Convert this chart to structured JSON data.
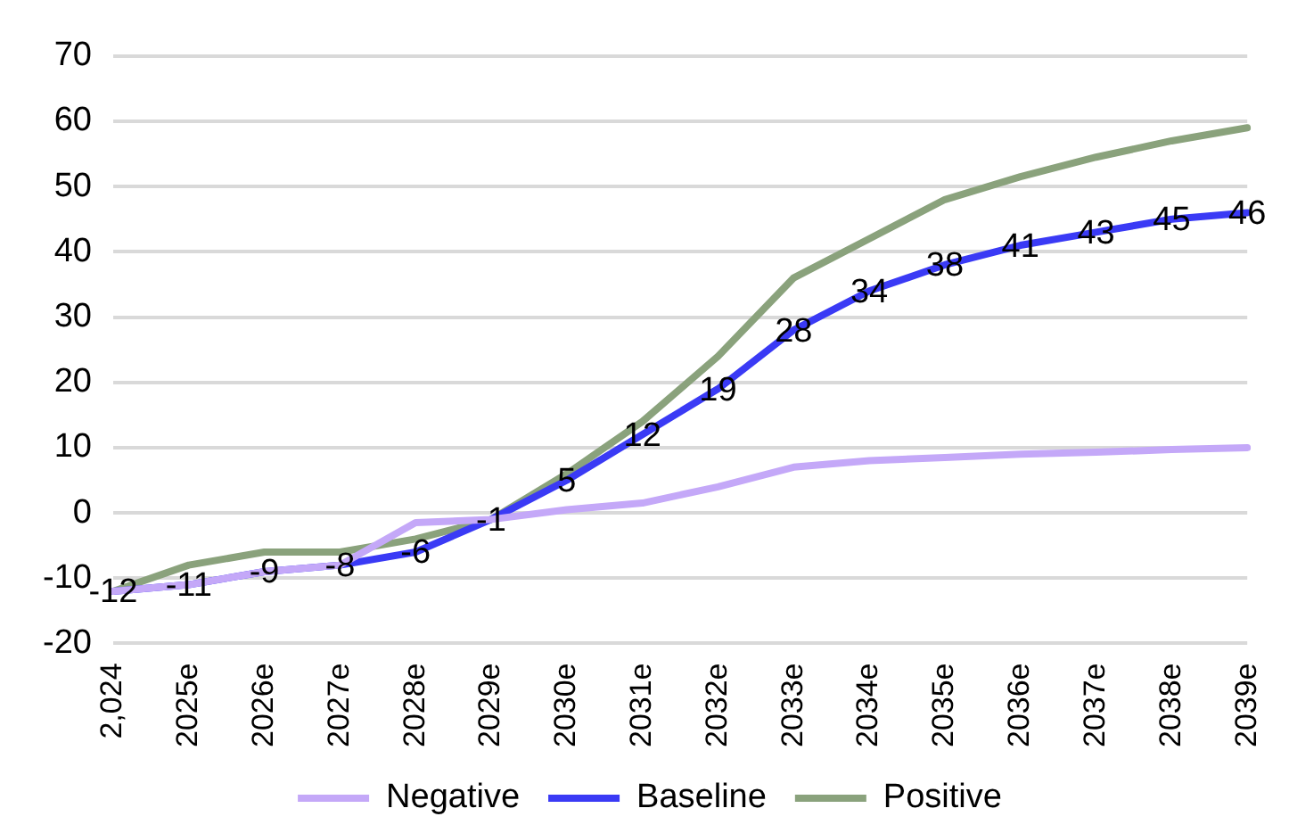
{
  "chart_data": {
    "type": "line",
    "categories": [
      "2,024",
      "2025e",
      "2026e",
      "2027e",
      "2028e",
      "2029e",
      "2030e",
      "2031e",
      "2032e",
      "2033e",
      "2034e",
      "2035e",
      "2036e",
      "2037e",
      "2038e",
      "2039e"
    ],
    "series": [
      {
        "name": "Negative",
        "color": "#c4a8f8",
        "values": [
          -12,
          -11,
          -9,
          -8,
          -1.5,
          -1,
          0.5,
          1.5,
          4,
          7,
          8,
          8.5,
          9,
          9.3,
          9.7,
          10
        ]
      },
      {
        "name": "Baseline",
        "color": "#3a3af5",
        "values": [
          -12,
          -11,
          -9,
          -8,
          -6,
          -1,
          5,
          12,
          19,
          28,
          34,
          38,
          41,
          43,
          45,
          46
        ],
        "value_labels": [
          "-12",
          "-11",
          "-9",
          "-8",
          "-6",
          "-1",
          "5",
          "12",
          "19",
          "28",
          "34",
          "38",
          "41",
          "43",
          "45",
          "46"
        ]
      },
      {
        "name": "Positive",
        "color": "#8aa27c",
        "values": [
          -12,
          -8,
          -6,
          -6,
          -4,
          -1,
          6,
          14,
          24,
          36,
          42,
          48,
          51.5,
          54.5,
          57,
          59
        ]
      }
    ],
    "ylim": [
      -20,
      70
    ],
    "yticks": [
      -20,
      -10,
      0,
      10,
      20,
      30,
      40,
      50,
      60,
      70
    ],
    "grid": "y",
    "legend": "bottom",
    "marker": "none",
    "line_style": "solid"
  }
}
